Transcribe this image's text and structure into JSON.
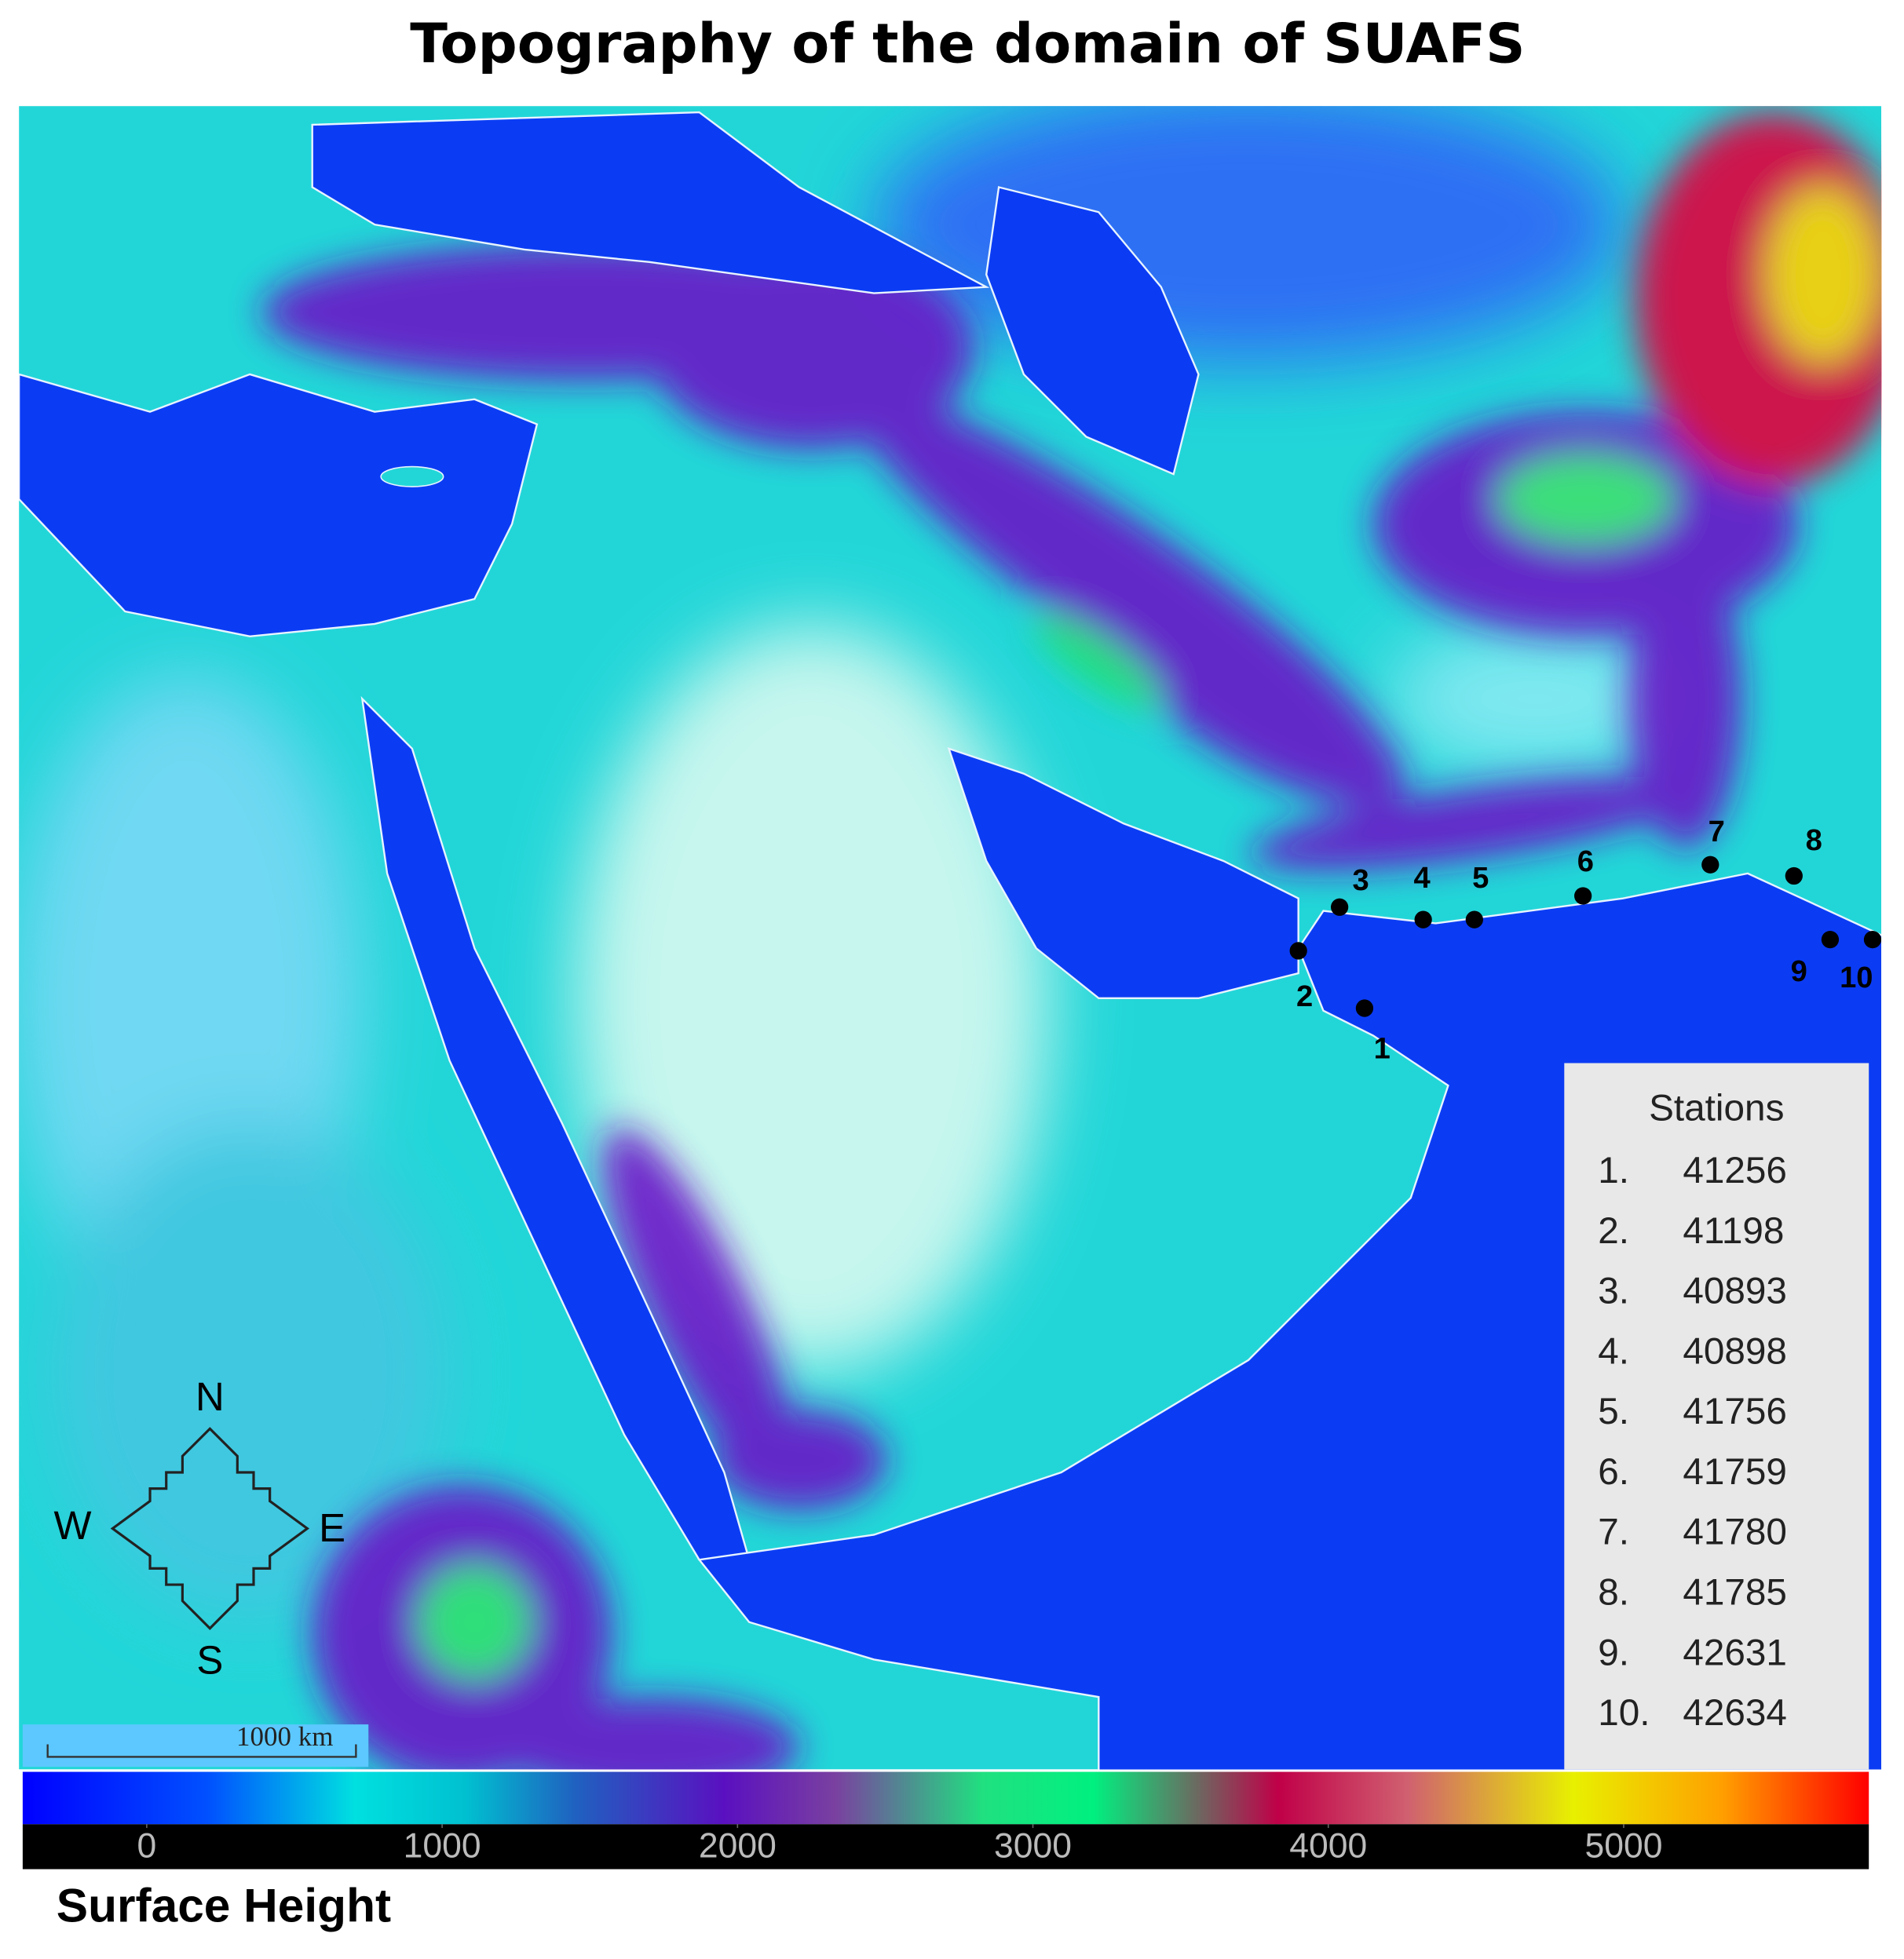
{
  "title": "Topography of the domain of SUAFS",
  "compass": {
    "north": "N",
    "south": "S",
    "east": "E",
    "west": "W"
  },
  "scale_bar": "1000 km",
  "stations": {
    "title": "Stations",
    "items": [
      {
        "map_label": "1",
        "list_label": "1.",
        "id": "41256"
      },
      {
        "map_label": "2",
        "list_label": "2.",
        "id": "41198"
      },
      {
        "map_label": "3",
        "list_label": "3.",
        "id": "40893"
      },
      {
        "map_label": "4",
        "list_label": "4.",
        "id": "40898"
      },
      {
        "map_label": "5",
        "list_label": "5.",
        "id": "41756"
      },
      {
        "map_label": "6",
        "list_label": "6.",
        "id": "41759"
      },
      {
        "map_label": "7",
        "list_label": "7.",
        "id": "41780"
      },
      {
        "map_label": "8",
        "list_label": "8.",
        "id": "41785"
      },
      {
        "map_label": "9",
        "list_label": "9.",
        "id": "42631"
      },
      {
        "map_label": "10",
        "list_label": "10.",
        "id": "42634"
      }
    ]
  },
  "colorbar": {
    "label": "Surface Height",
    "lim": [
      -420,
      5830
    ],
    "ticks": [
      0,
      1000,
      2000,
      3000,
      4000,
      5000
    ]
  }
}
